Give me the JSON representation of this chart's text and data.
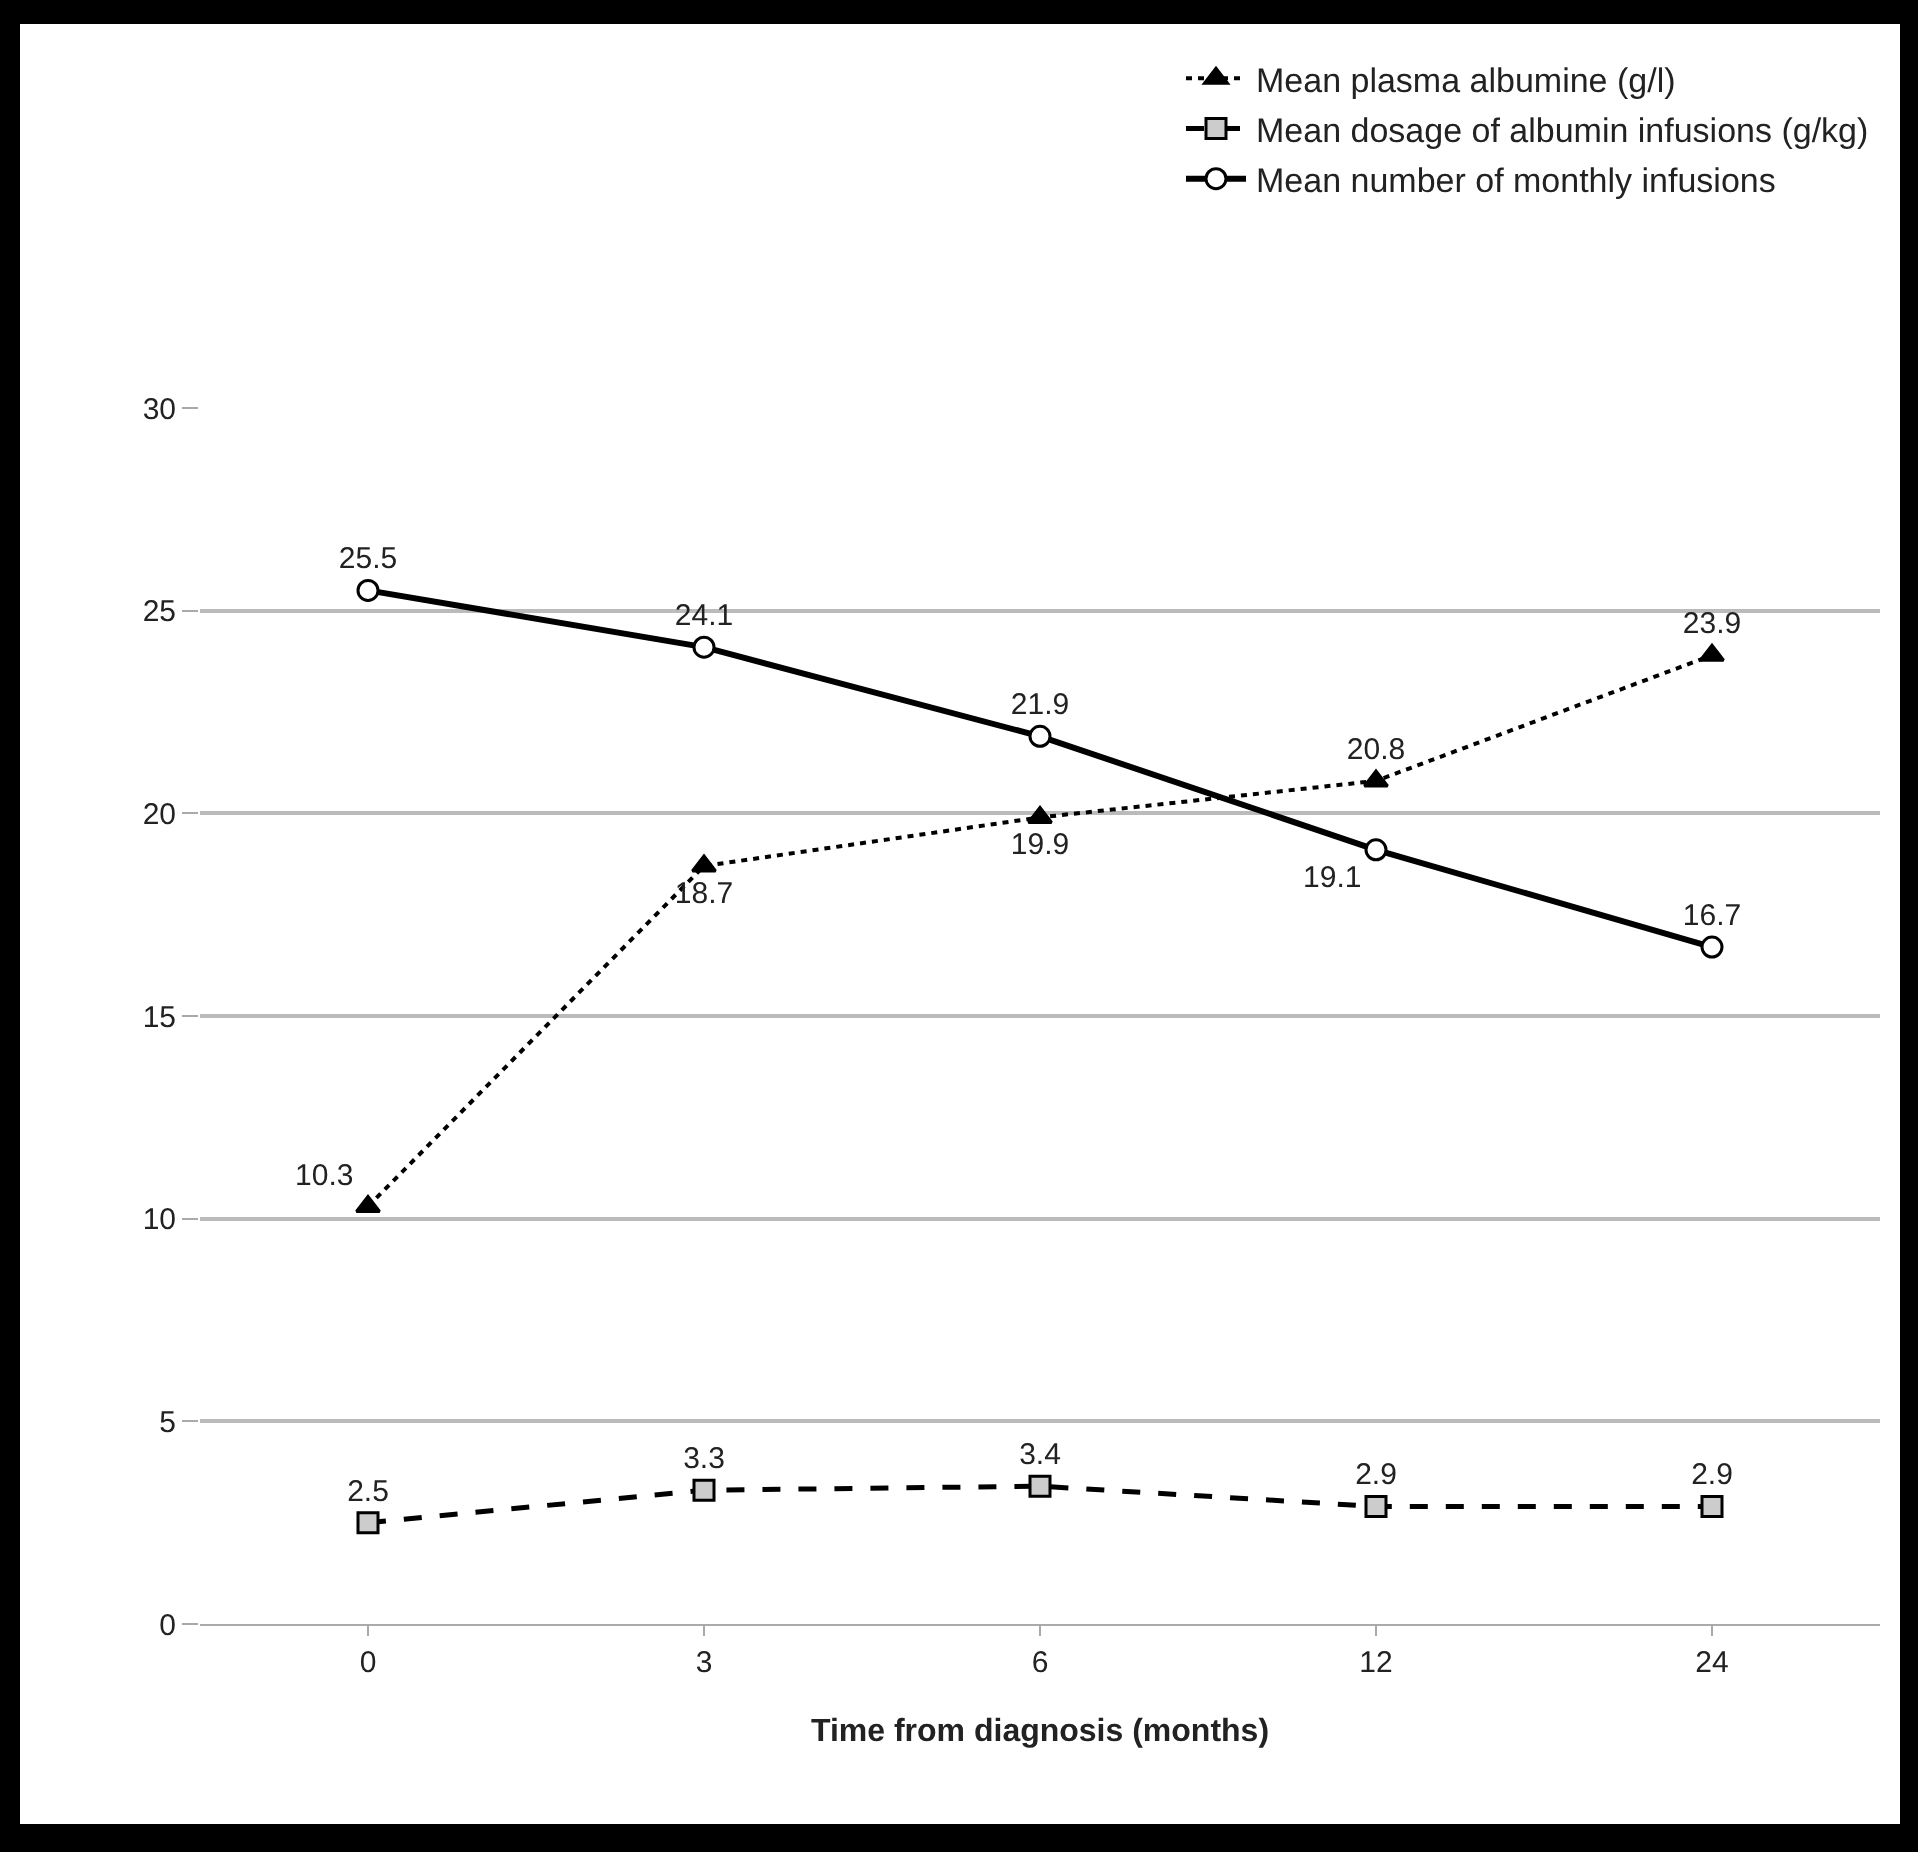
{
  "chart_data": {
    "type": "line",
    "xlabel": "Time from diagnosis (months)",
    "categories": [
      "0",
      "3",
      "6",
      "12",
      "24"
    ],
    "ylim": [
      0,
      30
    ],
    "yticks": [
      0,
      5,
      10,
      15,
      20,
      25,
      30
    ],
    "grid": "y",
    "legend": "top right",
    "data_labels": true,
    "series": [
      {
        "name": "Mean plasma albumine (g/l)",
        "color": "#000000",
        "marker": "triangle",
        "line_style": "dotted",
        "values": [
          10.3,
          18.7,
          19.9,
          20.8,
          23.9
        ]
      },
      {
        "name": "Mean dosage of albumin infusions (g/kg)",
        "color": "#000000",
        "marker": "square",
        "line_style": "dashed",
        "values": [
          2.5,
          3.3,
          3.4,
          2.9,
          2.9
        ]
      },
      {
        "name": "Mean number of monthly infusions",
        "color": "#000000",
        "marker": "circle",
        "line_style": "solid",
        "values": [
          25.5,
          24.1,
          21.9,
          19.1,
          16.7
        ]
      }
    ]
  }
}
